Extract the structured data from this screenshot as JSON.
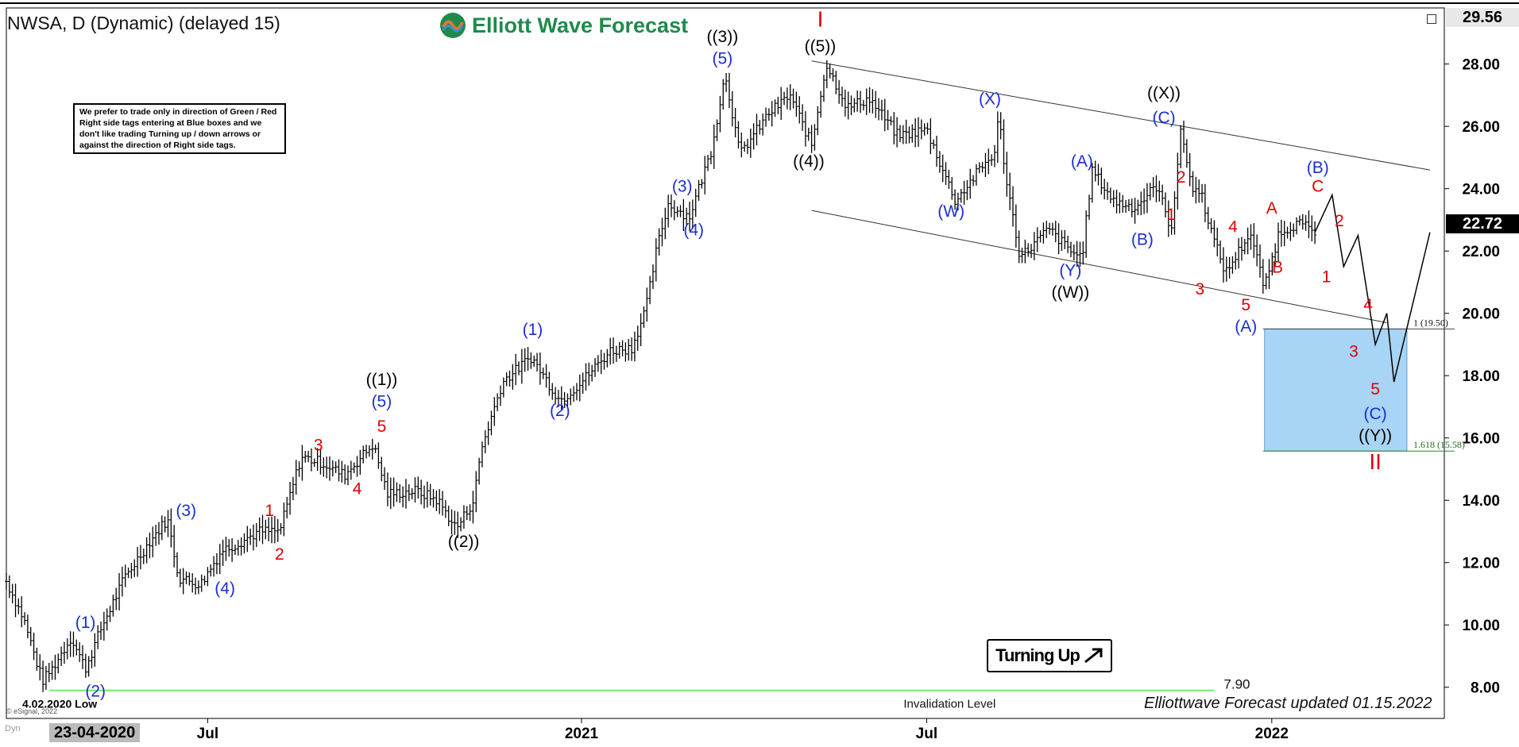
{
  "header": {
    "title": "NWSA, D (Dynamic) (delayed 15)",
    "brand": "Elliott Wave Forecast",
    "note": "We prefer to trade only in direction of Green / Red Right side tags entering at Blue boxes and we don't like trading Turning up / down arrows or against the direction of Right side tags.",
    "turning": "Turning Up",
    "updated": "Elliottwave Forecast updated 01.15.2022",
    "esignal": "© eSignal, 2022",
    "dyn": "Dyn",
    "date_box": "23-04-2020"
  },
  "chart_data": {
    "type": "ohlc",
    "symbol": "NWSA",
    "ylim": [
      7,
      29.8
    ],
    "y_ticks": [
      8,
      10,
      12,
      14,
      16,
      18,
      20,
      22,
      24,
      26,
      28
    ],
    "y_tick_labels": [
      "8.00",
      "10.00",
      "12.00",
      "14.00",
      "16.00",
      "18.00",
      "20.00",
      "22.00",
      "24.00",
      "26.00",
      "28.00"
    ],
    "x_labels": [
      {
        "t": 0.14,
        "label": "Jul"
      },
      {
        "t": 0.4,
        "label": "2021"
      },
      {
        "t": 0.64,
        "label": "Jul"
      },
      {
        "t": 0.88,
        "label": "2022"
      }
    ],
    "last_price": "22.72",
    "top_price": "29.56",
    "price_path": [
      [
        0.0,
        11.4
      ],
      [
        0.012,
        10.2
      ],
      [
        0.025,
        8.2
      ],
      [
        0.032,
        8.6
      ],
      [
        0.045,
        9.6
      ],
      [
        0.055,
        8.6
      ],
      [
        0.066,
        9.9
      ],
      [
        0.082,
        11.5
      ],
      [
        0.1,
        12.7
      ],
      [
        0.112,
        13.4
      ],
      [
        0.12,
        11.5
      ],
      [
        0.135,
        11.3
      ],
      [
        0.15,
        12.4
      ],
      [
        0.16,
        12.6
      ],
      [
        0.176,
        13.0
      ],
      [
        0.19,
        13.0
      ],
      [
        0.205,
        15.4
      ],
      [
        0.22,
        15.2
      ],
      [
        0.235,
        14.8
      ],
      [
        0.255,
        15.8
      ],
      [
        0.265,
        14.2
      ],
      [
        0.285,
        14.3
      ],
      [
        0.3,
        14.0
      ],
      [
        0.313,
        13.1
      ],
      [
        0.325,
        14.0
      ],
      [
        0.33,
        15.6
      ],
      [
        0.345,
        17.8
      ],
      [
        0.365,
        18.6
      ],
      [
        0.385,
        17.2
      ],
      [
        0.4,
        17.8
      ],
      [
        0.42,
        18.8
      ],
      [
        0.435,
        18.9
      ],
      [
        0.445,
        20.2
      ],
      [
        0.452,
        22.0
      ],
      [
        0.46,
        23.5
      ],
      [
        0.475,
        23.1
      ],
      [
        0.49,
        25.2
      ],
      [
        0.5,
        27.7
      ],
      [
        0.51,
        25.1
      ],
      [
        0.53,
        26.4
      ],
      [
        0.545,
        27.0
      ],
      [
        0.56,
        25.4
      ],
      [
        0.57,
        28.0
      ],
      [
        0.585,
        26.6
      ],
      [
        0.6,
        26.9
      ],
      [
        0.62,
        25.7
      ],
      [
        0.64,
        25.9
      ],
      [
        0.66,
        23.6
      ],
      [
        0.675,
        24.5
      ],
      [
        0.688,
        25.2
      ],
      [
        0.69,
        26.4
      ],
      [
        0.695,
        24.4
      ],
      [
        0.705,
        21.8
      ],
      [
        0.725,
        22.7
      ],
      [
        0.74,
        22.0
      ],
      [
        0.748,
        21.8
      ],
      [
        0.755,
        24.6
      ],
      [
        0.77,
        23.6
      ],
      [
        0.785,
        23.4
      ],
      [
        0.8,
        24.1
      ],
      [
        0.81,
        22.7
      ],
      [
        0.817,
        25.9
      ],
      [
        0.825,
        23.9
      ],
      [
        0.83,
        24.0
      ],
      [
        0.84,
        22.3
      ],
      [
        0.848,
        21.3
      ],
      [
        0.865,
        22.6
      ],
      [
        0.875,
        20.8
      ],
      [
        0.885,
        22.6
      ],
      [
        0.898,
        22.9
      ],
      [
        0.91,
        22.6
      ]
    ],
    "projection": [
      [
        0.91,
        22.6
      ],
      [
        0.922,
        23.8
      ],
      [
        0.93,
        21.5
      ],
      [
        0.94,
        22.5
      ],
      [
        0.952,
        19.0
      ],
      [
        0.96,
        20.0
      ],
      [
        0.965,
        17.8
      ],
      [
        0.99,
        22.6
      ]
    ],
    "channel_upper": [
      [
        0.56,
        28.1
      ],
      [
        0.99,
        24.6
      ]
    ],
    "channel_lower": [
      [
        0.56,
        23.3
      ],
      [
        0.96,
        19.7
      ]
    ],
    "blue_box": {
      "t0": 0.875,
      "t1": 0.974,
      "top": 19.5,
      "bottom": 15.58
    },
    "fib_labels": [
      {
        "y": 19.5,
        "label": "1 (19.50)"
      },
      {
        "y": 15.58,
        "label": "1.618 (15.58)"
      }
    ],
    "invalidation": {
      "y": 7.9,
      "label": "Invalidation Level",
      "value_label": "7.90",
      "t0": 0.03,
      "t1": 0.84
    },
    "low_label": "4.02.2020 Low",
    "wave_labels": [
      {
        "t": 0.055,
        "y": 9.9,
        "label": "(1)",
        "color": "blue"
      },
      {
        "t": 0.062,
        "y": 7.7,
        "label": "(2)",
        "color": "blue"
      },
      {
        "t": 0.125,
        "y": 13.5,
        "label": "(3)",
        "color": "blue"
      },
      {
        "t": 0.152,
        "y": 11.0,
        "label": "(4)",
        "color": "blue"
      },
      {
        "t": 0.183,
        "y": 13.5,
        "label": "1",
        "color": "red"
      },
      {
        "t": 0.19,
        "y": 12.1,
        "label": "2",
        "color": "red"
      },
      {
        "t": 0.217,
        "y": 15.6,
        "label": "3",
        "color": "red"
      },
      {
        "t": 0.244,
        "y": 14.2,
        "label": "4",
        "color": "red"
      },
      {
        "t": 0.261,
        "y": 16.2,
        "label": "5",
        "color": "red"
      },
      {
        "t": 0.261,
        "y": 17.0,
        "label": "(5)",
        "color": "blue"
      },
      {
        "t": 0.261,
        "y": 17.7,
        "label": "((1))",
        "color": "black"
      },
      {
        "t": 0.318,
        "y": 12.5,
        "label": "((2))",
        "color": "black"
      },
      {
        "t": 0.366,
        "y": 19.3,
        "label": "(1)",
        "color": "blue"
      },
      {
        "t": 0.385,
        "y": 16.7,
        "label": "(2)",
        "color": "blue"
      },
      {
        "t": 0.47,
        "y": 23.9,
        "label": "(3)",
        "color": "blue"
      },
      {
        "t": 0.478,
        "y": 22.5,
        "label": "(4)",
        "color": "blue"
      },
      {
        "t": 0.498,
        "y": 28.0,
        "label": "(5)",
        "color": "blue"
      },
      {
        "t": 0.498,
        "y": 28.7,
        "label": "((3))",
        "color": "black"
      },
      {
        "t": 0.558,
        "y": 24.7,
        "label": "((4))",
        "color": "black"
      },
      {
        "t": 0.566,
        "y": 28.4,
        "label": "((5))",
        "color": "black"
      },
      {
        "t": 0.566,
        "y": 29.2,
        "label": "I",
        "color": "red"
      },
      {
        "t": 0.657,
        "y": 23.1,
        "label": "(W)",
        "color": "blue"
      },
      {
        "t": 0.684,
        "y": 26.7,
        "label": "(X)",
        "color": "blue"
      },
      {
        "t": 0.74,
        "y": 21.2,
        "label": "(Y)",
        "color": "blue"
      },
      {
        "t": 0.74,
        "y": 20.5,
        "label": "((W))",
        "color": "black"
      },
      {
        "t": 0.748,
        "y": 24.7,
        "label": "(A)",
        "color": "blue"
      },
      {
        "t": 0.79,
        "y": 22.2,
        "label": "(B)",
        "color": "blue"
      },
      {
        "t": 0.805,
        "y": 26.1,
        "label": "(C)",
        "color": "blue"
      },
      {
        "t": 0.805,
        "y": 26.9,
        "label": "((X))",
        "color": "black"
      },
      {
        "t": 0.81,
        "y": 23.0,
        "label": "1",
        "color": "red"
      },
      {
        "t": 0.817,
        "y": 24.2,
        "label": "2",
        "color": "red"
      },
      {
        "t": 0.83,
        "y": 20.6,
        "label": "3",
        "color": "red"
      },
      {
        "t": 0.853,
        "y": 22.6,
        "label": "4",
        "color": "red"
      },
      {
        "t": 0.862,
        "y": 20.1,
        "label": "5",
        "color": "red"
      },
      {
        "t": 0.862,
        "y": 19.4,
        "label": "(A)",
        "color": "blue"
      },
      {
        "t": 0.88,
        "y": 23.2,
        "label": "A",
        "color": "red"
      },
      {
        "t": 0.884,
        "y": 21.3,
        "label": "B",
        "color": "red"
      },
      {
        "t": 0.912,
        "y": 23.9,
        "label": "C",
        "color": "red"
      },
      {
        "t": 0.912,
        "y": 24.5,
        "label": "(B)",
        "color": "blue"
      },
      {
        "t": 0.918,
        "y": 21.0,
        "label": "1",
        "color": "red"
      },
      {
        "t": 0.927,
        "y": 22.8,
        "label": "2",
        "color": "red"
      },
      {
        "t": 0.937,
        "y": 18.6,
        "label": "3",
        "color": "red"
      },
      {
        "t": 0.947,
        "y": 20.1,
        "label": "4",
        "color": "red"
      },
      {
        "t": 0.952,
        "y": 17.4,
        "label": "5",
        "color": "red"
      },
      {
        "t": 0.952,
        "y": 16.6,
        "label": "(C)",
        "color": "blue"
      },
      {
        "t": 0.952,
        "y": 15.9,
        "label": "((Y))",
        "color": "black"
      },
      {
        "t": 0.952,
        "y": 15.0,
        "label": "II",
        "color": "red"
      }
    ]
  }
}
